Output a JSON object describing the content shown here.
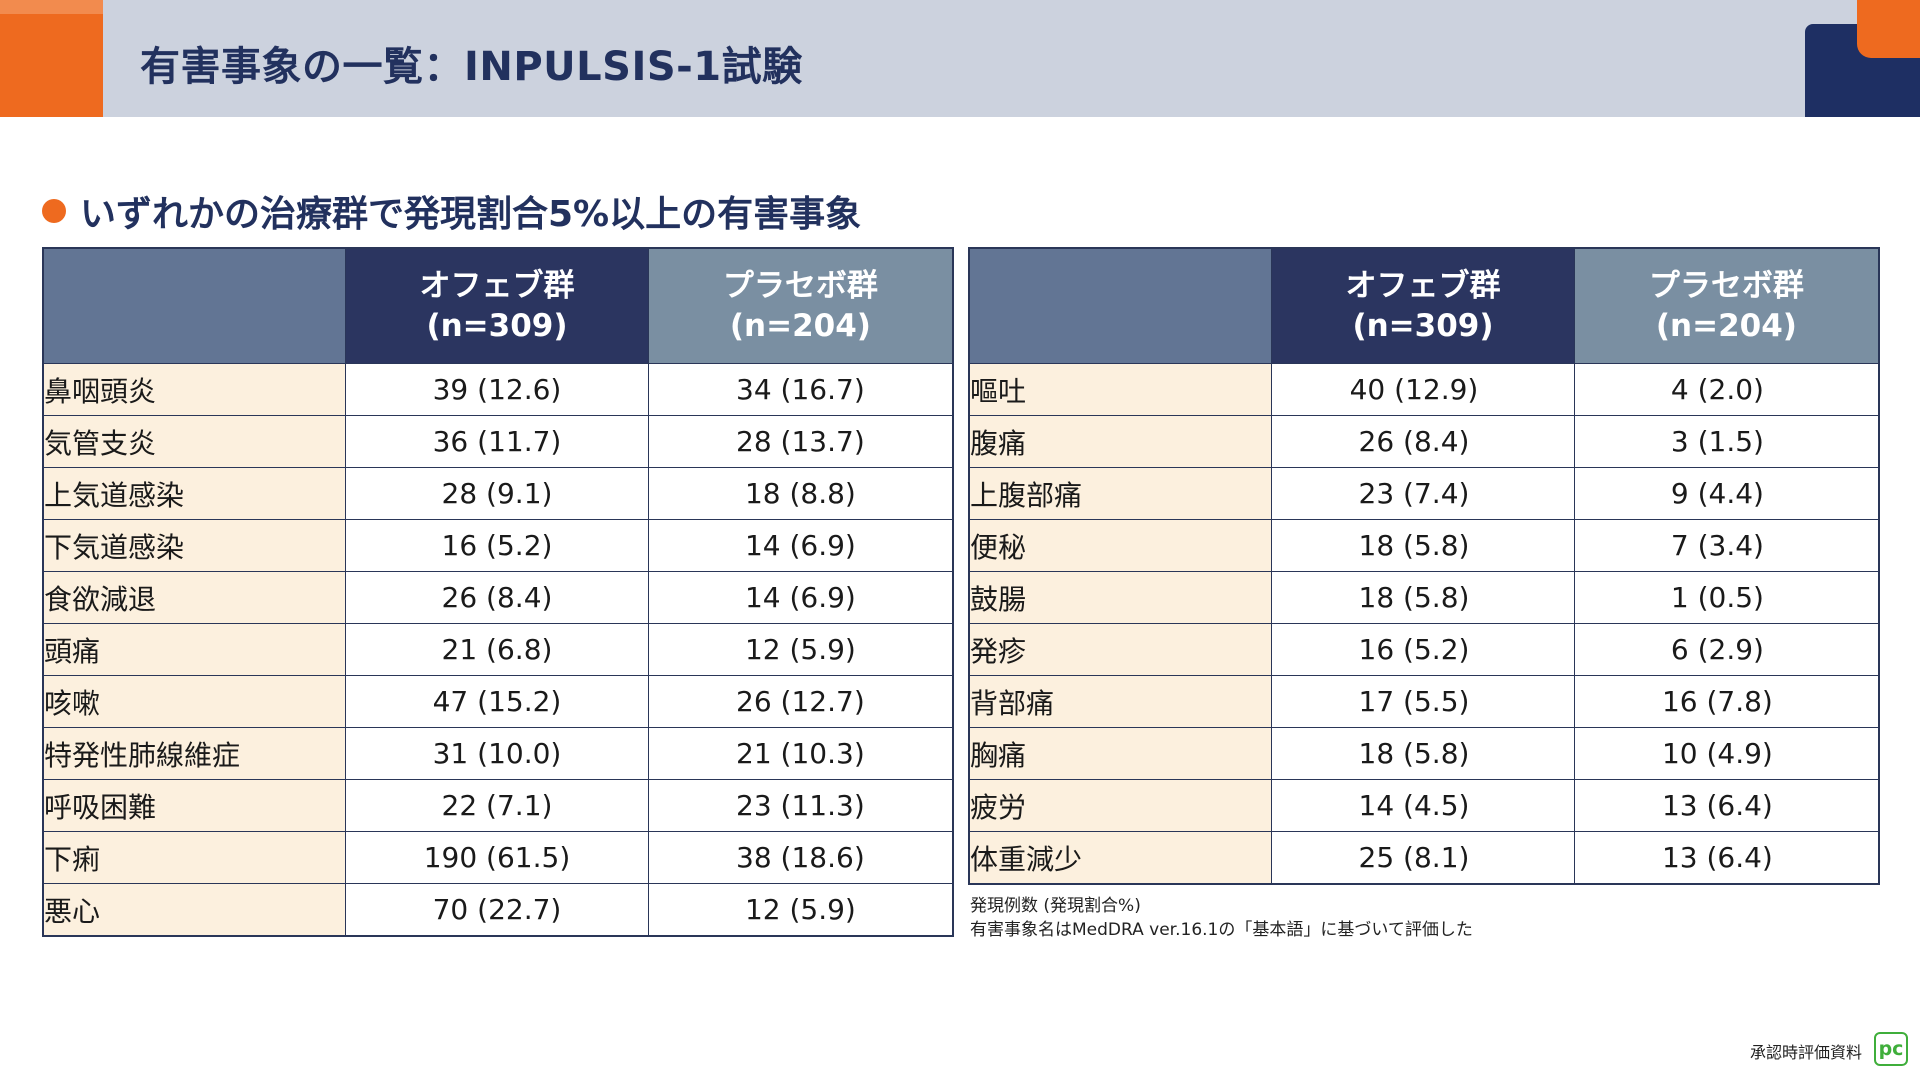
{
  "header": {
    "title": "有害事象の一覧：INPULSIS-1試験"
  },
  "section": {
    "heading": "いずれかの治療群で発現割合5%以上の有害事象"
  },
  "columns": {
    "ofev": "オフェブ群",
    "ofev_n": "(n=309)",
    "placebo": "プラセボ群",
    "placebo_n": "(n=204)"
  },
  "left_table": [
    {
      "name": "鼻咽頭炎",
      "ofev": "39 (12.6)",
      "placebo": "34 (16.7)"
    },
    {
      "name": "気管支炎",
      "ofev": "36 (11.7)",
      "placebo": "28 (13.7)"
    },
    {
      "name": "上気道感染",
      "ofev": "28 (9.1)",
      "placebo": "18 (8.8)"
    },
    {
      "name": "下気道感染",
      "ofev": "16 (5.2)",
      "placebo": "14 (6.9)"
    },
    {
      "name": "食欲減退",
      "ofev": "26 (8.4)",
      "placebo": "14 (6.9)"
    },
    {
      "name": "頭痛",
      "ofev": "21 (6.8)",
      "placebo": "12 (5.9)"
    },
    {
      "name": "咳嗽",
      "ofev": "47 (15.2)",
      "placebo": "26 (12.7)"
    },
    {
      "name": "特発性肺線維症",
      "ofev": "31 (10.0)",
      "placebo": "21 (10.3)"
    },
    {
      "name": "呼吸困難",
      "ofev": "22 (7.1)",
      "placebo": "23 (11.3)"
    },
    {
      "name": "下痢",
      "ofev": "190 (61.5)",
      "placebo": "38 (18.6)"
    },
    {
      "name": "悪心",
      "ofev": "70 (22.7)",
      "placebo": "12 (5.9)"
    }
  ],
  "right_table": [
    {
      "name": "嘔吐",
      "ofev": "40 (12.9)",
      "placebo": "4 (2.0)"
    },
    {
      "name": "腹痛",
      "ofev": "26 (8.4)",
      "placebo": "3 (1.5)"
    },
    {
      "name": "上腹部痛",
      "ofev": "23 (7.4)",
      "placebo": "9 (4.4)"
    },
    {
      "name": "便秘",
      "ofev": "18 (5.8)",
      "placebo": "7 (3.4)"
    },
    {
      "name": "鼓腸",
      "ofev": "18 (5.8)",
      "placebo": "1 (0.5)"
    },
    {
      "name": "発疹",
      "ofev": "16 (5.2)",
      "placebo": "6 (2.9)"
    },
    {
      "name": "背部痛",
      "ofev": "17 (5.5)",
      "placebo": "16 (7.8)"
    },
    {
      "name": "胸痛",
      "ofev": "18 (5.8)",
      "placebo": "10 (4.9)"
    },
    {
      "name": "疲労",
      "ofev": "14 (4.5)",
      "placebo": "13 (6.4)"
    },
    {
      "name": "体重減少",
      "ofev": "25 (8.1)",
      "placebo": "13 (6.4)"
    }
  ],
  "footnotes": {
    "line1": "発現例数 (発現割合%)",
    "line2": "有害事象名はMedDRA ver.16.1の「基本語」に基づいて評価した"
  },
  "footer": {
    "approval": "承認時評価資料",
    "logo_text": "pc"
  },
  "colors": {
    "accent_orange": "#ee6a1f",
    "navy": "#22315e",
    "header_ofev": "#2b3560",
    "header_placebo": "#7a8fa2",
    "row_label_bg": "#fcf0de",
    "logo_green": "#3fae3b"
  }
}
